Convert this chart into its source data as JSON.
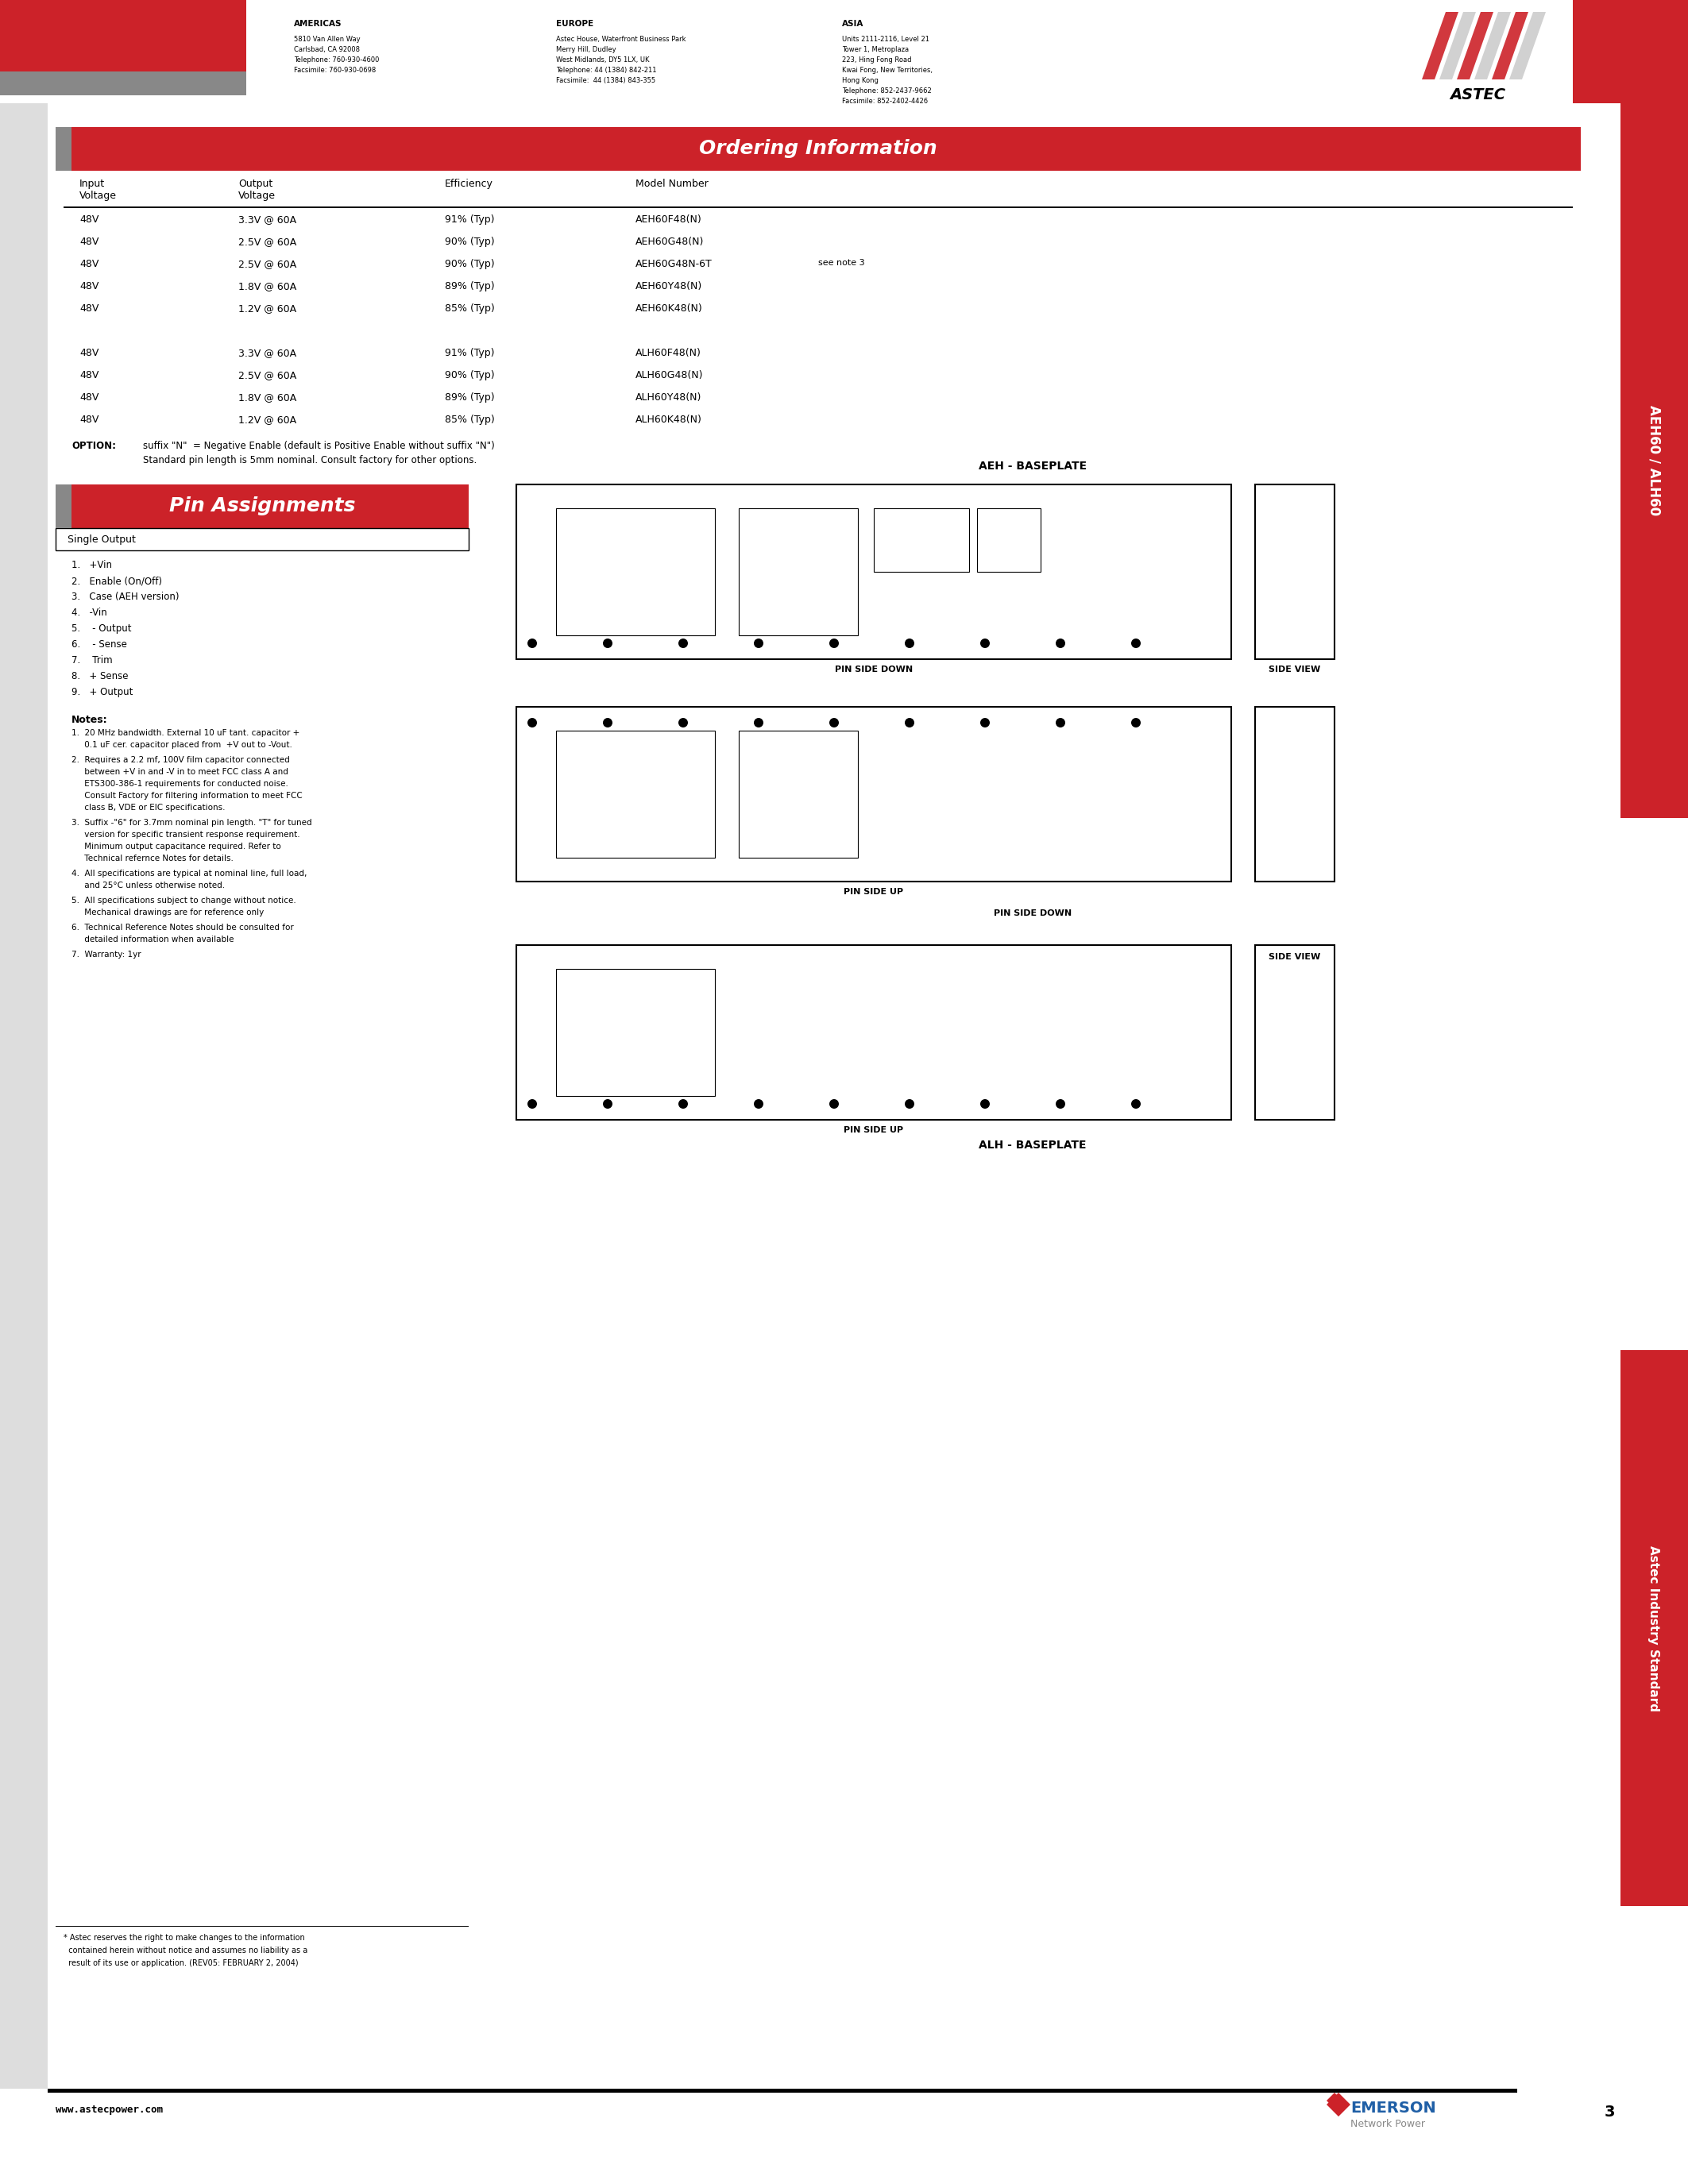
{
  "bg_color": "#ffffff",
  "red_color": "#cc2229",
  "dark_red": "#aa1111",
  "gray_color": "#808080",
  "blue_color": "#1f5fa6",
  "header_red": "#cc2229",
  "page_number": "3",
  "website": "www.astecpower.com",
  "header": {
    "americas_title": "AMERICAS",
    "americas_lines": [
      "5810 Van Allen Way",
      "Carlsbad, CA 92008",
      "Telephone: 760-930-4600",
      "Facsimile: 760-930-0698"
    ],
    "europe_title": "EUROPE",
    "europe_lines": [
      "Astec House, Waterfront Business Park",
      "Merry Hill, Dudley",
      "West Midlands, DY5 1LX, UK",
      "Telephone: 44 (1384) 842-211",
      "Facsimile:  44 (1384) 843-355"
    ],
    "asia_title": "ASIA",
    "asia_lines": [
      "Units 2111-2116, Level 21",
      "Tower 1, Metroplaza",
      "223, Hing Fong Road",
      "Kwai Fong, New Territories,",
      "Hong Kong",
      "Telephone: 852-2437-9662",
      "Facsimile: 852-2402-4426"
    ]
  },
  "ordering_title": "Ordering Information",
  "ordering_col_headers": [
    "Input\nVoltage",
    "Output\nVoltage",
    "Efficiency",
    "Model Number"
  ],
  "ordering_rows": [
    [
      "48V",
      "3.3V @ 60A",
      "91% (Typ)",
      "AEH60F48(N)",
      ""
    ],
    [
      "48V",
      "2.5V @ 60A",
      "90% (Typ)",
      "AEH60G48(N)",
      ""
    ],
    [
      "48V",
      "2.5V @ 60A",
      "90% (Typ)",
      "AEH60G48N-6T",
      "see note 3"
    ],
    [
      "48V",
      "1.8V @ 60A",
      "89% (Typ)",
      "AEH60Y48(N)",
      ""
    ],
    [
      "48V",
      "1.2V @ 60A",
      "85% (Typ)",
      "AEH60K48(N)",
      ""
    ],
    [
      "",
      "",
      "",
      "",
      ""
    ],
    [
      "48V",
      "3.3V @ 60A",
      "91% (Typ)",
      "ALH60F48(N)",
      ""
    ],
    [
      "48V",
      "2.5V @ 60A",
      "90% (Typ)",
      "ALH60G48(N)",
      ""
    ],
    [
      "48V",
      "1.8V @ 60A",
      "89% (Typ)",
      "ALH60Y48(N)",
      ""
    ],
    [
      "48V",
      "1.2V @ 60A",
      "85% (Typ)",
      "ALH60K48(N)",
      ""
    ]
  ],
  "option_text": "OPTION:    suffix \"N\" = Negative Enable (default is Positive Enable without suffix \"N\")\n                Standard pin length is 5mm nominal. Consult factory for other options.",
  "pin_title": "Pin Assignments",
  "pin_subtitle": "Single Output",
  "pin_list": [
    "1.   +Vin",
    "2.   Enable (On/Off)",
    "3.   Case (AEH version)",
    "4.   -Vin",
    "5.    - Output",
    "6.    - Sense",
    "7.    Trim",
    "8.   + Sense",
    "9.   + Output"
  ],
  "notes_title": "Notes:",
  "notes": [
    "1.  20 MHz bandwidth. External 10 uF tant. capacitor +\n     0.1 uF cer. capacitor placed from  +V out to -Vout.",
    "2.  Requires a 2.2 mf, 100V film capacitor connected\n     between +V in and -V in to meet FCC class A and\n     ETS300-386-1 requirements for conducted noise.\n     Consult Factory for filtering information to meet FCC\n     class B, VDE or EIC specifications.",
    "3.  Suffix -\"6\" for 3.7mm nominal pin length. \"T\" for tuned\n     version for specific transient response requirement.\n     Minimum output capacitance required. Refer to\n     Technical refernce Notes for details.",
    "4.  All specifications are typical at nominal line, full load,\n     and 25°C unless otherwise noted.",
    "5.  All specifications subject to change without notice.\n     Mechanical drawings are for reference only",
    "6.  Technical Reference Notes should be consulted for\n     detailed information when available",
    "7.  Warranty: 1yr"
  ],
  "footnote": "* Astec reserves the right to make changes to the information\n  contained herein without notice and assumes no liability as a\n  result of its use or application. (REV05: FEBRUARY 2, 2004)",
  "aeh_label": "AEH - BASEPLATE",
  "alh_label": "ALH - BASEPLATE",
  "pin_side_down1": "PIN SIDE DOWN",
  "side_view1": "SIDE VIEW",
  "pin_side_up1": "PIN SIDE UP",
  "pin_side_down2": "PIN SIDE DOWN",
  "side_view2": "SIDE VIEW",
  "pin_side_up2": "PIN SIDE UP",
  "sidebar_text": "AEH60 / ALH60",
  "sidebar_text2": "Astec Industry Standard",
  "emerson_text": "EMERSON",
  "network_power": "Network Power"
}
